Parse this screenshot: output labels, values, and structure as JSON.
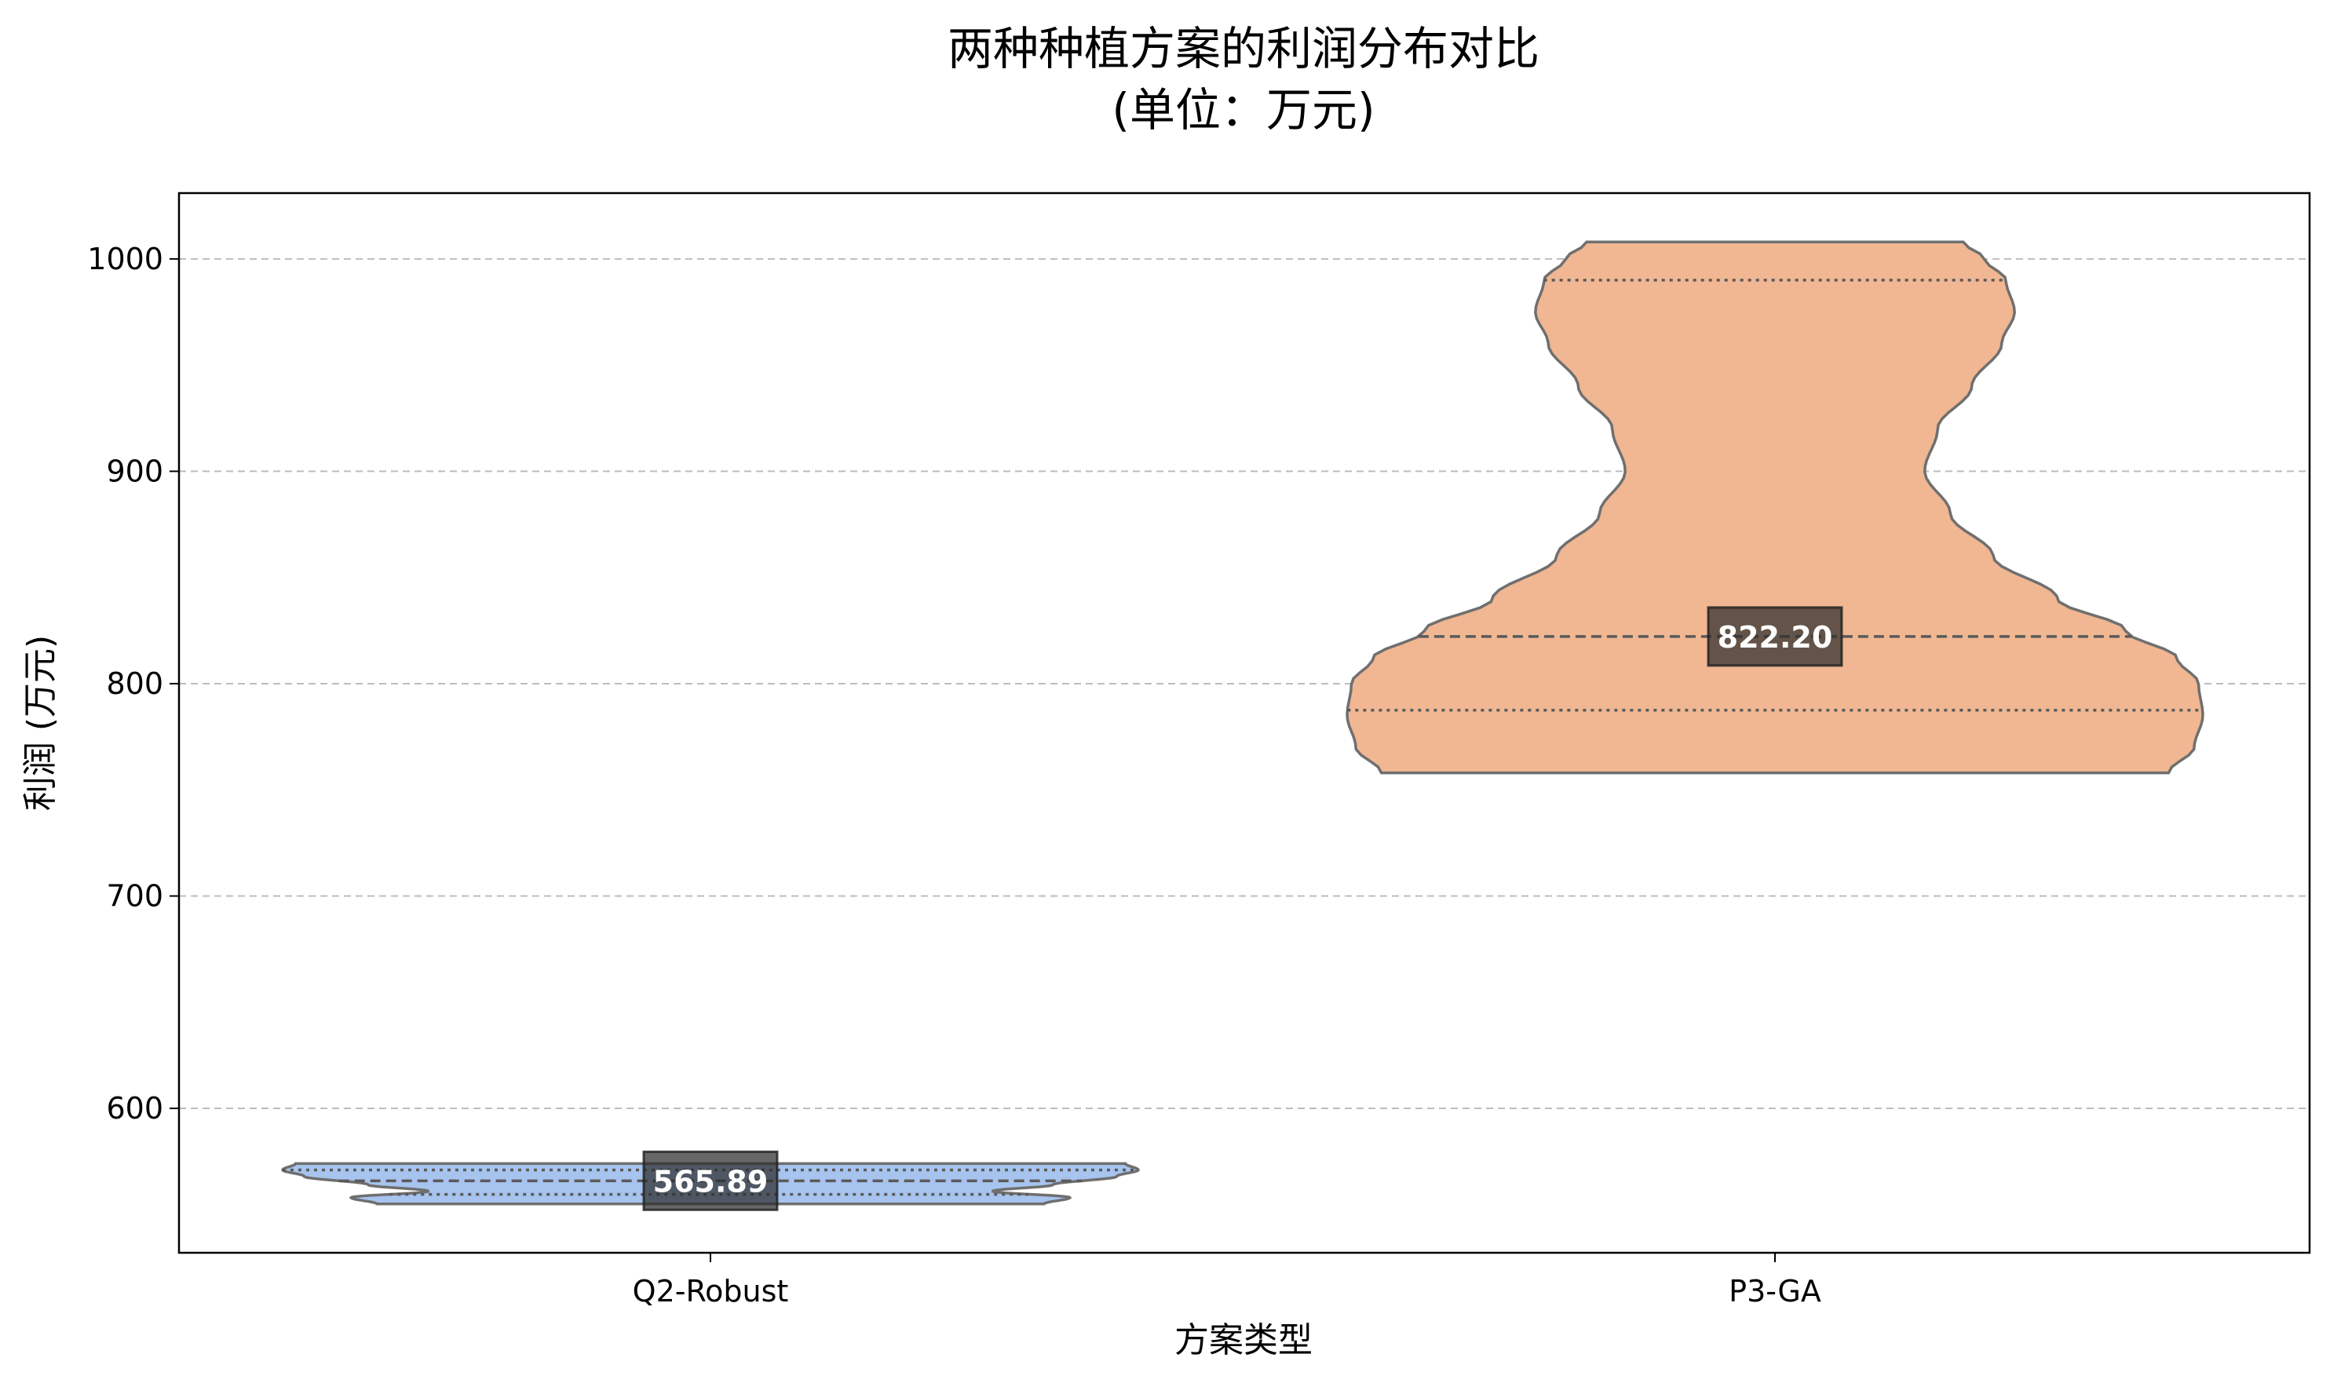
{
  "chart_data": {
    "type": "violin",
    "title": "两种种植方案的利润分布对比",
    "subtitle": "(单位：万元)",
    "xlabel": "方案类型",
    "ylabel": "利润 (万元)",
    "ylim": [
      532,
      1031
    ],
    "yticks": [
      600,
      700,
      800,
      900,
      1000
    ],
    "grid": "y-dashed",
    "categories": [
      "Q2-Robust",
      "P3-GA"
    ],
    "series": [
      {
        "category": "Q2-Robust",
        "color": "#a7c4ef",
        "min": 555,
        "max": 574,
        "q1": 559.5,
        "median": 565.89,
        "q3": 571,
        "median_label": "565.89",
        "density": [
          [
            555,
            0.78
          ],
          [
            558,
            0.84
          ],
          [
            561,
            0.66
          ],
          [
            564,
            0.8
          ],
          [
            568,
            0.95
          ],
          [
            571,
            1.0
          ],
          [
            574,
            0.97
          ]
        ]
      },
      {
        "category": "P3-GA",
        "color": "#f0b792",
        "min": 758,
        "max": 1008,
        "q1": 787.5,
        "median": 822.2,
        "q3": 990,
        "median_label": "822.20",
        "density": [
          [
            758,
            0.92
          ],
          [
            770,
            0.98
          ],
          [
            785,
            1.0
          ],
          [
            800,
            0.99
          ],
          [
            812,
            0.94
          ],
          [
            825,
            0.82
          ],
          [
            840,
            0.66
          ],
          [
            860,
            0.51
          ],
          [
            880,
            0.41
          ],
          [
            900,
            0.35
          ],
          [
            920,
            0.38
          ],
          [
            940,
            0.46
          ],
          [
            960,
            0.53
          ],
          [
            975,
            0.56
          ],
          [
            990,
            0.54
          ],
          [
            1000,
            0.49
          ],
          [
            1008,
            0.44
          ]
        ]
      }
    ]
  }
}
